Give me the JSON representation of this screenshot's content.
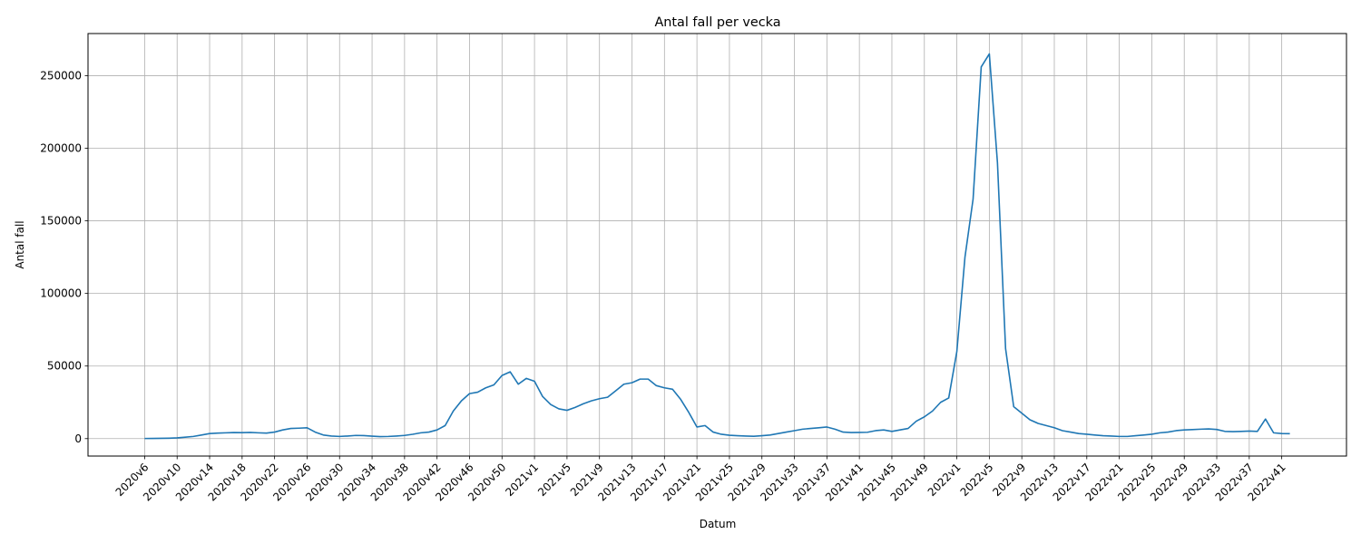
{
  "chart_data": {
    "type": "line",
    "title": "Antal fall per vecka",
    "xlabel": "Datum",
    "ylabel": "Antal fall",
    "ylim": [
      -12000,
      279000
    ],
    "yticks": [
      0,
      50000,
      100000,
      150000,
      200000,
      250000
    ],
    "grid": true,
    "series_color": "#1f77b4",
    "x_tick_labels": [
      "2020v6",
      "2020v10",
      "2020v14",
      "2020v18",
      "2020v22",
      "2020v26",
      "2020v30",
      "2020v34",
      "2020v38",
      "2020v42",
      "2020v46",
      "2020v50",
      "2021v1",
      "2021v5",
      "2021v9",
      "2021v13",
      "2021v17",
      "2021v21",
      "2021v25",
      "2021v29",
      "2021v33",
      "2021v37",
      "2021v41",
      "2021v45",
      "2021v49",
      "2022v1",
      "2022v5",
      "2022v9",
      "2022v13",
      "2022v17",
      "2022v21",
      "2022v25",
      "2022v29",
      "2022v33",
      "2022v37",
      "2022v41"
    ],
    "x": [
      "2020v6",
      "2020v7",
      "2020v8",
      "2020v9",
      "2020v10",
      "2020v11",
      "2020v12",
      "2020v13",
      "2020v14",
      "2020v15",
      "2020v16",
      "2020v17",
      "2020v18",
      "2020v19",
      "2020v20",
      "2020v21",
      "2020v22",
      "2020v23",
      "2020v24",
      "2020v25",
      "2020v26",
      "2020v27",
      "2020v28",
      "2020v29",
      "2020v30",
      "2020v31",
      "2020v32",
      "2020v33",
      "2020v34",
      "2020v35",
      "2020v36",
      "2020v37",
      "2020v38",
      "2020v39",
      "2020v40",
      "2020v41",
      "2020v42",
      "2020v43",
      "2020v44",
      "2020v45",
      "2020v46",
      "2020v47",
      "2020v48",
      "2020v49",
      "2020v50",
      "2020v51",
      "2020v52",
      "2020v53",
      "2021v1",
      "2021v2",
      "2021v3",
      "2021v4",
      "2021v5",
      "2021v6",
      "2021v7",
      "2021v8",
      "2021v9",
      "2021v10",
      "2021v11",
      "2021v12",
      "2021v13",
      "2021v14",
      "2021v15",
      "2021v16",
      "2021v17",
      "2021v18",
      "2021v19",
      "2021v20",
      "2021v21",
      "2021v22",
      "2021v23",
      "2021v24",
      "2021v25",
      "2021v26",
      "2021v27",
      "2021v28",
      "2021v29",
      "2021v30",
      "2021v31",
      "2021v32",
      "2021v33",
      "2021v34",
      "2021v35",
      "2021v36",
      "2021v37",
      "2021v38",
      "2021v39",
      "2021v40",
      "2021v41",
      "2021v42",
      "2021v43",
      "2021v44",
      "2021v45",
      "2021v46",
      "2021v47",
      "2021v48",
      "2021v49",
      "2021v50",
      "2021v51",
      "2021v52",
      "2022v1",
      "2022v2",
      "2022v3",
      "2022v4",
      "2022v5",
      "2022v6",
      "2022v7",
      "2022v8",
      "2022v9",
      "2022v10",
      "2022v11",
      "2022v12",
      "2022v13",
      "2022v14",
      "2022v15",
      "2022v16",
      "2022v17",
      "2022v18",
      "2022v19",
      "2022v20",
      "2022v21",
      "2022v22",
      "2022v23",
      "2022v24",
      "2022v25",
      "2022v26",
      "2022v27",
      "2022v28",
      "2022v29",
      "2022v30",
      "2022v31",
      "2022v32",
      "2022v33",
      "2022v34",
      "2022v35",
      "2022v36",
      "2022v37",
      "2022v38",
      "2022v39",
      "2022v40",
      "2022v41",
      "2022v42"
    ],
    "values": [
      100,
      150,
      200,
      300,
      500,
      1000,
      1500,
      2500,
      3500,
      3800,
      4000,
      4200,
      4100,
      4300,
      4000,
      3800,
      4500,
      6000,
      7000,
      7200,
      7500,
      4500,
      2500,
      1800,
      1500,
      1800,
      2200,
      2100,
      1700,
      1400,
      1500,
      1800,
      2200,
      3000,
      4000,
      4500,
      6000,
      9000,
      19000,
      26000,
      31000,
      32000,
      35000,
      37000,
      43500,
      46000,
      37500,
      41500,
      39500,
      29000,
      23500,
      20500,
      19500,
      21500,
      24000,
      26000,
      27500,
      28500,
      33000,
      37500,
      38500,
      41000,
      41000,
      36500,
      35000,
      34000,
      27000,
      18000,
      8000,
      9000,
      4500,
      3000,
      2300,
      2000,
      1800,
      1600,
      2000,
      2500,
      3500,
      4500,
      5500,
      6500,
      7000,
      7500,
      8000,
      6500,
      4500,
      4200,
      4300,
      4400,
      5500,
      6000,
      5000,
      6000,
      7000,
      12000,
      15000,
      19000,
      25000,
      28000,
      60000,
      125000,
      165000,
      256000,
      265000,
      190000,
      62000,
      22000,
      17500,
      13000,
      10500,
      9000,
      7500,
      5500,
      4500,
      3500,
      3000,
      2500,
      2000,
      1800,
      1500,
      1500,
      2000,
      2500,
      3000,
      4000,
      4500,
      5500,
      6000,
      6200,
      6500,
      6700,
      6300,
      5000,
      4800,
      5000,
      5200,
      5000,
      13500,
      4000,
      3500,
      3400
    ]
  }
}
